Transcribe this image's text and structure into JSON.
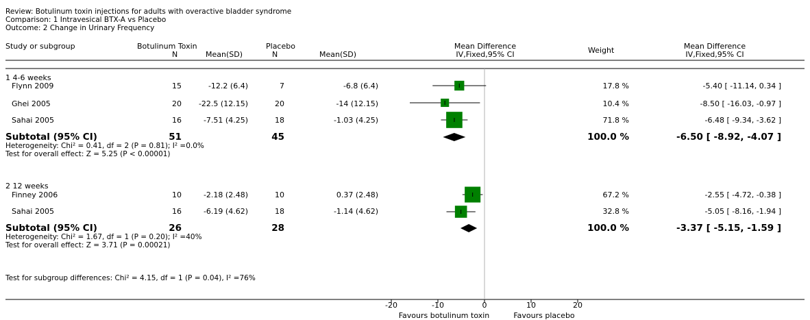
{
  "header": {
    "review": "Review:  Botulinum toxin injections for adults with overactive bladder syndrome",
    "comparison": "Comparison:  1 Intravesical BTX-A vs Placebo",
    "outcome": "Outcome:  2 Change in Urinary Frequency"
  },
  "columns": {
    "study": "Study or subgroup",
    "treatment": "Botulinum Toxin",
    "control": "Placebo",
    "n": "N",
    "mean_sd": "Mean(SD)",
    "md": "Mean Difference",
    "md_method": "IV,Fixed,95% CI",
    "weight": "Weight",
    "md_right": "Mean Difference",
    "md_right_method": "IV,Fixed,95% CI"
  },
  "subgroups": [
    {
      "label": "1 4-6 weeks",
      "studies": [
        {
          "name": "Flynn 2009",
          "n1": "15",
          "m1": "-12.2 (6.4)",
          "n2": "7",
          "m2": "-6.8 (6.4)",
          "weight": "17.8 %",
          "ci": "-5.40 [ -11.14, 0.34 ]"
        },
        {
          "name": "Ghei 2005",
          "n1": "20",
          "m1": "-22.5 (12.15)",
          "n2": "20",
          "m2": "-14 (12.15)",
          "weight": "10.4 %",
          "ci": "-8.50 [ -16.03, -0.97 ]"
        },
        {
          "name": "Sahai 2005",
          "n1": "16",
          "m1": "-7.51 (4.25)",
          "n2": "18",
          "m2": "-1.03 (4.25)",
          "weight": "71.8 %",
          "ci": "-6.48 [ -9.34, -3.62 ]"
        }
      ],
      "subtotal": {
        "label": "Subtotal (95% CI)",
        "n1": "51",
        "n2": "45",
        "weight": "100.0 %",
        "ci": "-6.50 [ -8.92, -4.07 ]"
      },
      "heterogeneity": "Heterogeneity: Chi² = 0.41, df = 2 (P = 0.81); I² =0.0%",
      "overall": "Test for overall effect: Z = 5.25 (P < 0.00001)"
    },
    {
      "label": "2 12 weeks",
      "studies": [
        {
          "name": "Finney 2006",
          "n1": "10",
          "m1": "-2.18 (2.48)",
          "n2": "10",
          "m2": "0.37 (2.48)",
          "weight": "67.2 %",
          "ci": "-2.55 [ -4.72, -0.38 ]"
        },
        {
          "name": "Sahai 2005",
          "n1": "16",
          "m1": "-6.19 (4.62)",
          "n2": "18",
          "m2": "-1.14 (4.62)",
          "weight": "32.8 %",
          "ci": "-5.05 [ -8.16, -1.94 ]"
        }
      ],
      "subtotal": {
        "label": "Subtotal (95% CI)",
        "n1": "26",
        "n2": "28",
        "weight": "100.0 %",
        "ci": "-3.37 [ -5.15, -1.59 ]"
      },
      "heterogeneity": "Heterogeneity: Chi² = 1.67, df = 1 (P = 0.20); I² =40%",
      "overall": "Test for overall effect: Z = 3.71 (P = 0.00021)"
    }
  ],
  "subgroup_differences": "Test for subgroup differences: Chi² = 4.15, df = 1 (P = 0.04), I² =76%",
  "axis": {
    "tick_labels": [
      "-20",
      "-10",
      "0",
      "10",
      "20"
    ],
    "favours_left": "Favours botulinum toxin",
    "favours_right": "Favours placebo"
  },
  "chart_data": {
    "type": "forest",
    "xlim": [
      -20,
      20
    ],
    "ticks": [
      -20,
      -10,
      0,
      10,
      20
    ],
    "null_line": 0,
    "colors": {
      "marker": "#008000",
      "diamond": "#000000",
      "line": "#000000"
    },
    "studies": [
      {
        "name": "Flynn 2009",
        "subgroup": "1 4-6 weeks",
        "md": -5.4,
        "lo": -11.14,
        "hi": 0.34,
        "weight": 17.8
      },
      {
        "name": "Ghei 2005",
        "subgroup": "1 4-6 weeks",
        "md": -8.5,
        "lo": -16.03,
        "hi": -0.97,
        "weight": 10.4
      },
      {
        "name": "Sahai 2005",
        "subgroup": "1 4-6 weeks",
        "md": -6.48,
        "lo": -9.34,
        "hi": -3.62,
        "weight": 71.8
      },
      {
        "name": "Finney 2006",
        "subgroup": "2 12 weeks",
        "md": -2.55,
        "lo": -4.72,
        "hi": -0.38,
        "weight": 67.2
      },
      {
        "name": "Sahai 2005",
        "subgroup": "2 12 weeks",
        "md": -5.05,
        "lo": -8.16,
        "hi": -1.94,
        "weight": 32.8
      }
    ],
    "subtotals": [
      {
        "subgroup": "1 4-6 weeks",
        "md": -6.5,
        "lo": -8.92,
        "hi": -4.07
      },
      {
        "subgroup": "2 12 weeks",
        "md": -3.37,
        "lo": -5.15,
        "hi": -1.59
      }
    ]
  }
}
